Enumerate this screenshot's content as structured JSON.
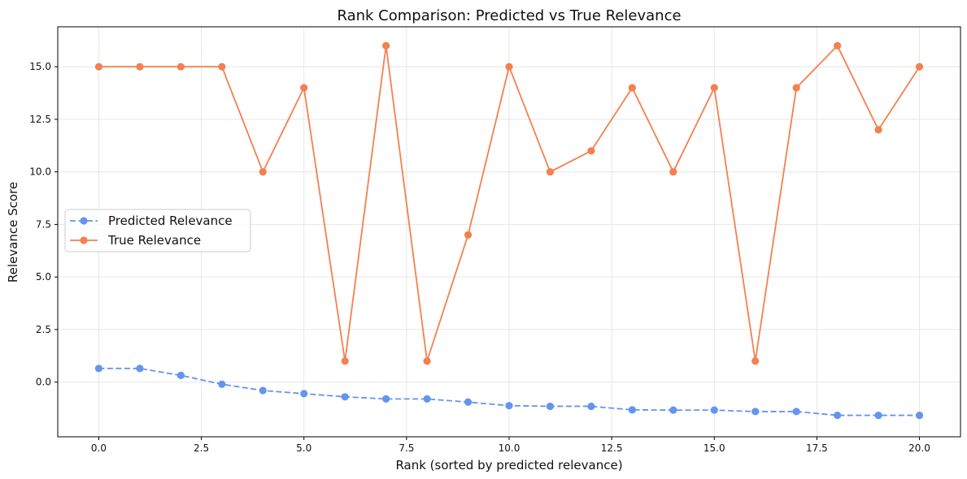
{
  "chart_data": {
    "type": "line",
    "title": "Rank Comparison: Predicted vs True Relevance",
    "xlabel": "Rank (sorted by predicted relevance)",
    "ylabel": "Relevance Score",
    "x": [
      0,
      1,
      2,
      3,
      4,
      5,
      6,
      7,
      8,
      9,
      10,
      11,
      12,
      13,
      14,
      15,
      16,
      17,
      18,
      19,
      20
    ],
    "xlim": [
      -1.0,
      21.0
    ],
    "ylim": [
      -2.6,
      16.9
    ],
    "x_ticks": [
      0,
      2.5,
      5,
      7.5,
      10,
      12.5,
      15,
      17.5,
      20
    ],
    "x_tick_labels": [
      "0.0",
      "2.5",
      "5.0",
      "7.5",
      "10.0",
      "12.5",
      "15.0",
      "17.5",
      "20.0"
    ],
    "y_ticks": [
      0,
      2.5,
      5,
      7.5,
      10,
      12.5,
      15
    ],
    "y_tick_labels": [
      "0.0",
      "2.5",
      "5.0",
      "7.5",
      "10.0",
      "12.5",
      "15.0"
    ],
    "grid": true,
    "legend_position": "center-left",
    "series": [
      {
        "name": "Predicted Relevance",
        "color": "#6495ED",
        "line_style": "dashed",
        "marker": "circle",
        "values": [
          0.65,
          0.65,
          0.32,
          -0.1,
          -0.4,
          -0.55,
          -0.7,
          -0.8,
          -0.8,
          -0.95,
          -1.12,
          -1.15,
          -1.15,
          -1.32,
          -1.33,
          -1.33,
          -1.4,
          -1.4,
          -1.58,
          -1.58,
          -1.58
        ]
      },
      {
        "name": "True Relevance",
        "color": "#F4804F",
        "line_style": "solid",
        "marker": "circle",
        "values": [
          15,
          15,
          15,
          15,
          10,
          14,
          1,
          16,
          1,
          7,
          15,
          10,
          11,
          14,
          10,
          14,
          1,
          14,
          16,
          12,
          15
        ]
      }
    ]
  }
}
